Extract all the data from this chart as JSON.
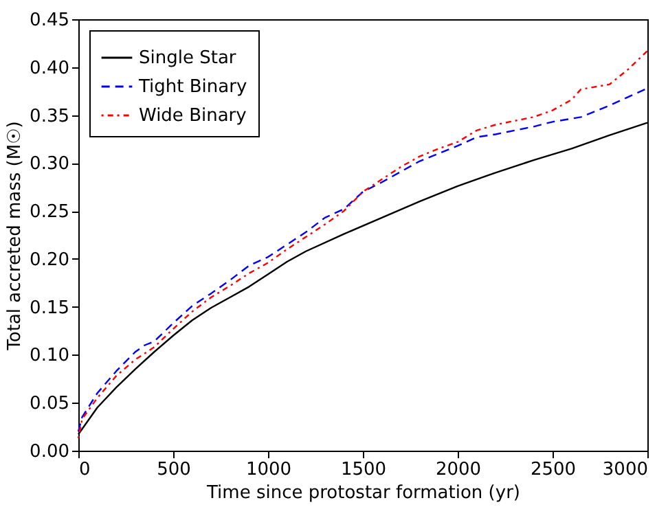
{
  "chart_data": {
    "type": "line",
    "xlabel": "Time since protostar formation (yr)",
    "ylabel": "Total accreted mass (M☉)",
    "xlim": [
      0,
      3000
    ],
    "xticks": [
      0,
      500,
      1000,
      1500,
      2000,
      2500,
      3000
    ],
    "ylim": [
      0,
      0.45
    ],
    "yticks": [
      {
        "value": 0,
        "label": "0.00"
      },
      0.05,
      {
        "value": 0.1,
        "label": "0.10"
      },
      0.15,
      {
        "value": 0.2,
        "label": "0.20"
      },
      0.25,
      {
        "value": 0.3,
        "label": "0.30"
      },
      0.35,
      {
        "value": 0.4,
        "label": "0.40"
      },
      0.45
    ],
    "grid": false,
    "legend": "top left",
    "series": [
      {
        "name": "Single Star",
        "color": "#000000",
        "line_style": "solid",
        "x": [
          0,
          100,
          200,
          300,
          400,
          500,
          600,
          700,
          800,
          900,
          1000,
          1100,
          1200,
          1400,
          1600,
          1800,
          2000,
          2200,
          2400,
          2600,
          2800,
          3000
        ],
        "values": [
          0.017,
          0.045,
          0.066,
          0.085,
          0.103,
          0.12,
          0.136,
          0.149,
          0.16,
          0.171,
          0.184,
          0.197,
          0.208,
          0.226,
          0.243,
          0.26,
          0.276,
          0.29,
          0.303,
          0.315,
          0.329,
          0.342
        ]
      },
      {
        "name": "Tight Binary",
        "color": "#0000ff",
        "line_style": "dashed",
        "x": [
          0,
          20,
          100,
          200,
          300,
          350,
          400,
          500,
          600,
          700,
          800,
          900,
          1000,
          1100,
          1200,
          1300,
          1400,
          1500,
          1600,
          1700,
          1800,
          1900,
          2000,
          2100,
          2200,
          2400,
          2500,
          2650,
          2800,
          3000
        ],
        "values": [
          0.02,
          0.035,
          0.06,
          0.083,
          0.103,
          0.11,
          0.114,
          0.133,
          0.151,
          0.164,
          0.178,
          0.193,
          0.202,
          0.215,
          0.228,
          0.243,
          0.252,
          0.27,
          0.28,
          0.291,
          0.302,
          0.31,
          0.318,
          0.327,
          0.33,
          0.338,
          0.343,
          0.348,
          0.36,
          0.378
        ]
      },
      {
        "name": "Wide Binary",
        "color": "#ff0000",
        "line_style": "dotted",
        "x": [
          0,
          20,
          100,
          200,
          300,
          400,
          500,
          600,
          700,
          800,
          900,
          1000,
          1100,
          1200,
          1300,
          1400,
          1500,
          1600,
          1700,
          1800,
          1900,
          2000,
          2100,
          2200,
          2400,
          2500,
          2600,
          2650,
          2800,
          2900,
          3000
        ],
        "values": [
          0.013,
          0.033,
          0.055,
          0.078,
          0.095,
          0.108,
          0.127,
          0.145,
          0.16,
          0.172,
          0.185,
          0.196,
          0.21,
          0.223,
          0.236,
          0.25,
          0.27,
          0.283,
          0.296,
          0.307,
          0.315,
          0.322,
          0.334,
          0.34,
          0.348,
          0.355,
          0.366,
          0.377,
          0.382,
          0.398,
          0.417
        ]
      }
    ]
  }
}
